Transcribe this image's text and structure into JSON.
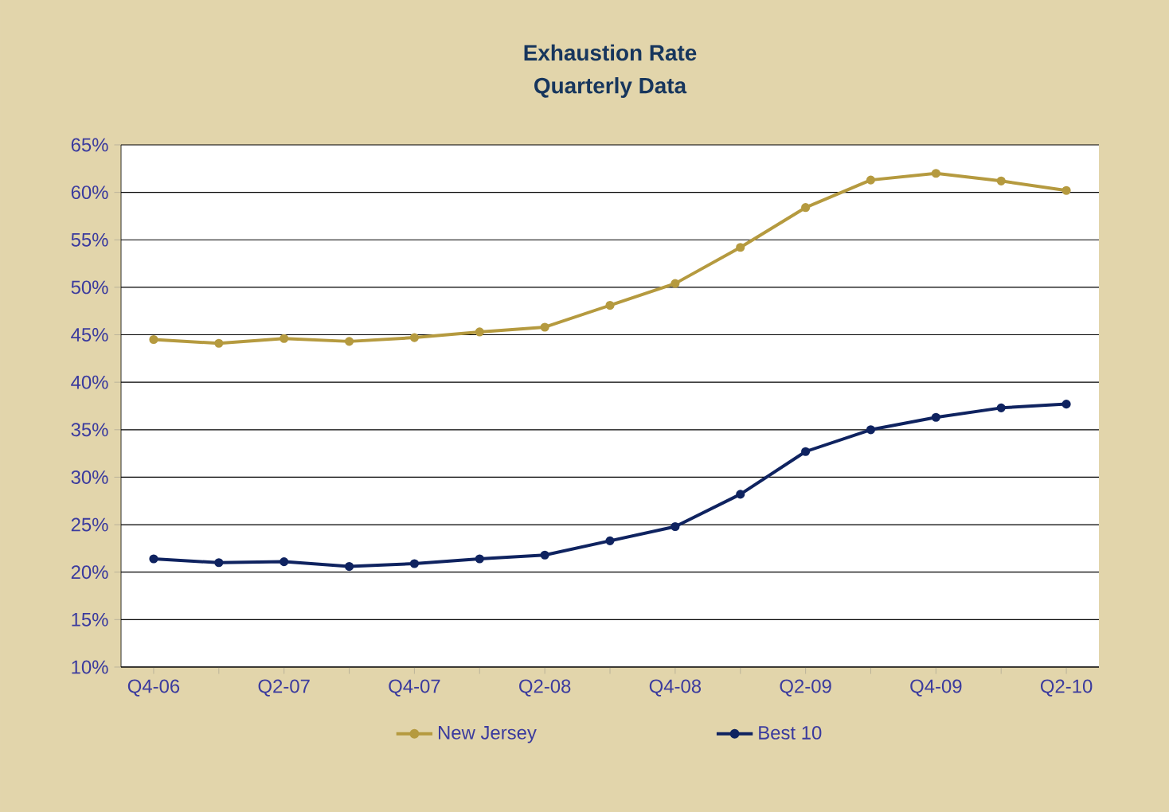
{
  "chart_data": {
    "type": "line",
    "title": "Exhaustion Rate",
    "subtitle": "Quarterly Data",
    "categories": [
      "Q4-06",
      null,
      "Q2-07",
      null,
      "Q4-07",
      null,
      "Q2-08",
      null,
      "Q4-08",
      null,
      "Q2-09",
      null,
      "Q4-09",
      null,
      "Q2-10"
    ],
    "series": [
      {
        "name": "New Jersey",
        "color": "#b59a3f",
        "values": [
          44.5,
          44.1,
          44.6,
          44.3,
          44.7,
          45.3,
          45.8,
          48.1,
          50.4,
          54.2,
          58.4,
          61.3,
          62.0,
          61.2,
          60.2
        ]
      },
      {
        "name": "Best 10",
        "color": "#0f2360",
        "values": [
          21.4,
          21.0,
          21.1,
          20.6,
          20.9,
          21.4,
          21.8,
          23.3,
          24.8,
          28.2,
          32.7,
          35.0,
          36.3,
          37.3,
          37.7
        ]
      }
    ],
    "ylim": [
      10,
      65
    ],
    "yticks": [
      {
        "value": 10,
        "label": "10%"
      },
      {
        "value": 15,
        "label": "15%"
      },
      {
        "value": 20,
        "label": "20%"
      },
      {
        "value": 25,
        "label": "25%"
      },
      {
        "value": 30,
        "label": "30%"
      },
      {
        "value": 35,
        "label": "35%"
      },
      {
        "value": 40,
        "label": "40%"
      },
      {
        "value": 45,
        "label": "45%"
      },
      {
        "value": 50,
        "label": "50%"
      },
      {
        "value": 55,
        "label": "55%"
      },
      {
        "value": 60,
        "label": "60%"
      },
      {
        "value": 65,
        "label": "65%"
      }
    ],
    "grid": "y",
    "legend": "bottom",
    "marker": "circle",
    "line_style": "solid"
  }
}
